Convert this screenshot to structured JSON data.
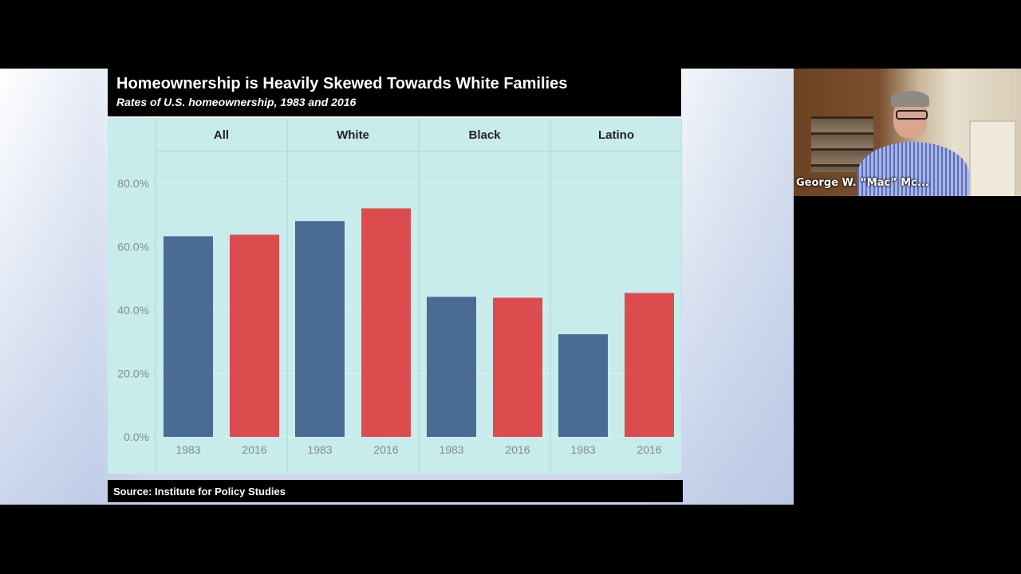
{
  "slide": {
    "title": "Homeownership is Heavily Skewed Towards White Families",
    "subtitle": "Rates of U.S. homeownership, 1983 and 2016",
    "source": "Source: Institute for Policy Studies"
  },
  "video": {
    "participant_name": "George W. “Mac” Mc..."
  },
  "colors": {
    "bar_1983": "#4a6b94",
    "bar_2016": "#dc4c4f",
    "chart_bg": "#c8eceb"
  },
  "chart_data": {
    "type": "bar",
    "title": "Homeownership is Heavily Skewed Towards White Families",
    "subtitle": "Rates of U.S. homeownership, 1983 and 2016",
    "groups": [
      "All",
      "White",
      "Black",
      "Latino"
    ],
    "categories": [
      "1983",
      "2016"
    ],
    "series": [
      {
        "group": "All",
        "values": [
          63.3,
          63.8
        ]
      },
      {
        "group": "White",
        "values": [
          68.1,
          72.1
        ]
      },
      {
        "group": "Black",
        "values": [
          44.2,
          43.9
        ]
      },
      {
        "group": "Latino",
        "values": [
          32.4,
          45.4
        ]
      }
    ],
    "yticks": [
      "0.0%",
      "20.0%",
      "40.0%",
      "60.0%",
      "80.0%"
    ],
    "ylim": [
      0,
      80
    ],
    "grid": true,
    "legend": "none"
  }
}
